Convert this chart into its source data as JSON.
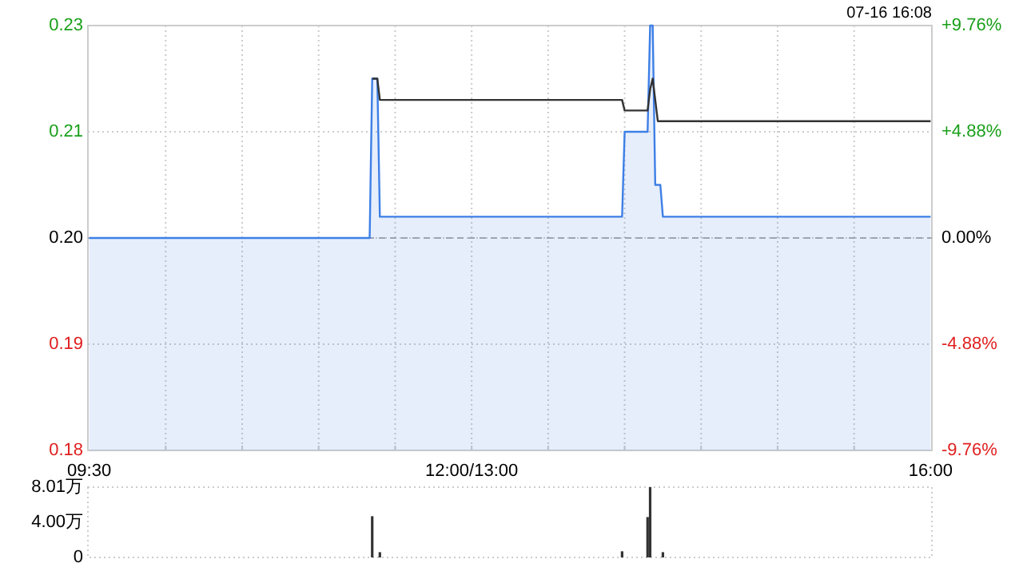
{
  "chart_data": [
    {
      "type": "area",
      "annotations": [
        "07-16 16:08"
      ],
      "categories": [
        "09:30",
        null,
        null,
        null,
        null,
        null,
        null,
        null,
        null,
        null,
        null,
        null,
        null,
        null,
        null,
        null,
        null,
        null,
        null,
        null,
        null,
        null,
        null,
        null,
        null,
        null,
        null,
        null,
        null,
        null,
        null,
        null,
        null,
        null,
        null,
        null,
        null,
        null,
        null,
        null,
        null,
        null,
        null,
        null,
        null,
        null,
        null,
        null,
        null,
        null,
        null,
        null,
        null,
        null,
        null,
        null,
        null,
        null,
        null,
        null,
        null,
        null,
        null,
        null,
        null,
        null,
        null,
        null,
        null,
        null,
        null,
        null,
        null,
        null,
        null,
        null,
        null,
        null,
        null,
        null,
        null,
        null,
        null,
        null,
        null,
        null,
        null,
        null,
        null,
        null,
        null,
        null,
        null,
        null,
        null,
        null,
        null,
        null,
        null,
        null,
        null,
        null,
        null,
        null,
        null,
        null,
        null,
        null,
        null,
        null,
        null,
        null,
        null,
        null,
        null,
        null,
        null,
        null,
        null,
        null,
        null,
        null,
        null,
        null,
        null,
        null,
        null,
        null,
        null,
        null,
        null,
        null,
        null,
        null,
        null,
        null,
        null,
        null,
        null,
        null,
        null,
        null,
        null,
        null,
        null,
        null,
        null,
        null,
        null,
        null,
        "12:00/13:00",
        null,
        null,
        null,
        null,
        null,
        null,
        null,
        null,
        null,
        null,
        null,
        null,
        null,
        null,
        null,
        null,
        null,
        null,
        null,
        null,
        null,
        null,
        null,
        null,
        null,
        null,
        null,
        null,
        null,
        null,
        null,
        null,
        null,
        null,
        null,
        null,
        null,
        null,
        null,
        null,
        null,
        null,
        null,
        null,
        null,
        null,
        null,
        null,
        null,
        null,
        null,
        null,
        null,
        null,
        null,
        null,
        null,
        null,
        null,
        null,
        null,
        null,
        null,
        null,
        null,
        null,
        null,
        null,
        null,
        null,
        null,
        null,
        null,
        null,
        null,
        null,
        null,
        null,
        null,
        null,
        null,
        null,
        null,
        null,
        null,
        null,
        null,
        null,
        null,
        null,
        null,
        null,
        null,
        null,
        null,
        null,
        null,
        null,
        null,
        null,
        null,
        null,
        null,
        null,
        null,
        null,
        null,
        null,
        null,
        null,
        null,
        null,
        null,
        null,
        null,
        null,
        null,
        null,
        null,
        null,
        null,
        null,
        null,
        null,
        null,
        null,
        null,
        null,
        null,
        null,
        null,
        null,
        null,
        null,
        null,
        null,
        null,
        null,
        null,
        null,
        null,
        null,
        null,
        null,
        null,
        null,
        null,
        null,
        null,
        null,
        null,
        null,
        null,
        null,
        null,
        null,
        null,
        null,
        null,
        null,
        null,
        null,
        null,
        null,
        null,
        null,
        null,
        null,
        null,
        null,
        null,
        null,
        null,
        null,
        null,
        null,
        null,
        null,
        null,
        "16:00"
      ],
      "ylim": [
        0.185,
        0.225
      ],
      "yticks": [
        {
          "value": 0.185,
          "label": "0.18"
        },
        {
          "value": 0.195,
          "label": "0.19"
        },
        {
          "value": 0.205,
          "label": "0.20"
        },
        {
          "value": 0.215,
          "label": "0.21"
        },
        {
          "value": 0.225,
          "label": "0.23"
        }
      ],
      "y2lim": [
        -9.76,
        9.76
      ],
      "y2ticks": [
        {
          "value": -9.76,
          "label": "-9.76%"
        },
        {
          "value": -4.88,
          "label": "-4.88%"
        },
        {
          "value": 0,
          "label": "0.00%"
        },
        {
          "value": 4.88,
          "label": "+4.88%"
        },
        {
          "value": 9.76,
          "label": "+9.76%"
        }
      ],
      "grid": true,
      "ref_lines": [
        {
          "axis": "y",
          "value": 0.205,
          "line_style": "dashed",
          "color": "#aaaaaa"
        }
      ],
      "series": [
        {
          "color": "#3d7fe6",
          "values": [
            0.205,
            0.205,
            0.205,
            0.205,
            0.205,
            0.205,
            0.205,
            0.205,
            0.205,
            0.205,
            0.205,
            0.205,
            0.205,
            0.205,
            0.205,
            0.205,
            0.205,
            0.205,
            0.205,
            0.205,
            0.205,
            0.205,
            0.205,
            0.205,
            0.205,
            0.205,
            0.205,
            0.205,
            0.205,
            0.205,
            0.205,
            0.205,
            0.205,
            0.205,
            0.205,
            0.205,
            0.205,
            0.205,
            0.205,
            0.205,
            0.205,
            0.205,
            0.205,
            0.205,
            0.205,
            0.205,
            0.205,
            0.205,
            0.205,
            0.205,
            0.205,
            0.205,
            0.205,
            0.205,
            0.205,
            0.205,
            0.205,
            0.205,
            0.205,
            0.205,
            0.205,
            0.205,
            0.205,
            0.205,
            0.205,
            0.205,
            0.205,
            0.205,
            0.205,
            0.205,
            0.205,
            0.205,
            0.205,
            0.205,
            0.205,
            0.205,
            0.205,
            0.205,
            0.205,
            0.205,
            0.205,
            0.205,
            0.205,
            0.205,
            0.205,
            0.205,
            0.205,
            0.205,
            0.205,
            0.205,
            0.205,
            0.205,
            0.205,
            0.205,
            0.205,
            0.205,
            0.205,
            0.205,
            0.205,
            0.205,
            0.205,
            0.205,
            0.205,
            0.205,
            0.205,
            0.205,
            0.205,
            0.205,
            0.205,
            0.205,
            0.205,
            0.22,
            0.22,
            0.22,
            0.207,
            0.207,
            0.207,
            0.207,
            0.207,
            0.207,
            0.207,
            0.207,
            0.207,
            0.207,
            0.207,
            0.207,
            0.207,
            0.207,
            0.207,
            0.207,
            0.207,
            0.207,
            0.207,
            0.207,
            0.207,
            0.207,
            0.207,
            0.207,
            0.207,
            0.207,
            0.207,
            0.207,
            0.207,
            0.207,
            0.207,
            0.207,
            0.207,
            0.207,
            0.207,
            0.207,
            0.207,
            0.207,
            0.207,
            0.207,
            0.207,
            0.207,
            0.207,
            0.207,
            0.207,
            0.207,
            0.207,
            0.207,
            0.207,
            0.207,
            0.207,
            0.207,
            0.207,
            0.207,
            0.207,
            0.207,
            0.207,
            0.207,
            0.207,
            0.207,
            0.207,
            0.207,
            0.207,
            0.207,
            0.207,
            0.207,
            0.207,
            0.207,
            0.207,
            0.207,
            0.207,
            0.207,
            0.207,
            0.207,
            0.207,
            0.207,
            0.207,
            0.207,
            0.207,
            0.207,
            0.207,
            0.207,
            0.207,
            0.207,
            0.207,
            0.207,
            0.207,
            0.207,
            0.207,
            0.207,
            0.207,
            0.207,
            0.207,
            0.207,
            0.207,
            0.207,
            0.215,
            0.215,
            0.215,
            0.215,
            0.215,
            0.215,
            0.215,
            0.215,
            0.215,
            0.215,
            0.225,
            0.225,
            0.21,
            0.21,
            0.21,
            0.207,
            0.207,
            0.207,
            0.207,
            0.207,
            0.207,
            0.207,
            0.207,
            0.207,
            0.207,
            0.207,
            0.207,
            0.207,
            0.207,
            0.207,
            0.207,
            0.207,
            0.207,
            0.207,
            0.207,
            0.207,
            0.207,
            0.207,
            0.207,
            0.207,
            0.207,
            0.207,
            0.207,
            0.207,
            0.207,
            0.207,
            0.207,
            0.207,
            0.207,
            0.207,
            0.207,
            0.207,
            0.207,
            0.207,
            0.207,
            0.207,
            0.207,
            0.207,
            0.207,
            0.207,
            0.207,
            0.207,
            0.207,
            0.207,
            0.207,
            0.207,
            0.207,
            0.207,
            0.207,
            0.207,
            0.207,
            0.207,
            0.207,
            0.207,
            0.207,
            0.207,
            0.207,
            0.207,
            0.207,
            0.207,
            0.207,
            0.207,
            0.207,
            0.207,
            0.207,
            0.207,
            0.207,
            0.207,
            0.207,
            0.207,
            0.207,
            0.207,
            0.207,
            0.207,
            0.207,
            0.207,
            0.207,
            0.207,
            0.207,
            0.207,
            0.207,
            0.207,
            0.207,
            0.207,
            0.207,
            0.207,
            0.207,
            0.207,
            0.207,
            0.207,
            0.207,
            0.207,
            0.207,
            0.207,
            0.207,
            0.207,
            0.207,
            0.207,
            0.207,
            0.207,
            0.207
          ]
        },
        {
          "type": "line",
          "color": "#333333",
          "values": [
            null,
            null,
            null,
            null,
            null,
            null,
            null,
            null,
            null,
            null,
            null,
            null,
            null,
            null,
            null,
            null,
            null,
            null,
            null,
            null,
            null,
            null,
            null,
            null,
            null,
            null,
            null,
            null,
            null,
            null,
            null,
            null,
            null,
            null,
            null,
            null,
            null,
            null,
            null,
            null,
            null,
            null,
            null,
            null,
            null,
            null,
            null,
            null,
            null,
            null,
            null,
            null,
            null,
            null,
            null,
            null,
            null,
            null,
            null,
            null,
            null,
            null,
            null,
            null,
            null,
            null,
            null,
            null,
            null,
            null,
            null,
            null,
            null,
            null,
            null,
            null,
            null,
            null,
            null,
            null,
            null,
            null,
            null,
            null,
            null,
            null,
            null,
            null,
            null,
            null,
            null,
            null,
            null,
            null,
            null,
            null,
            null,
            null,
            null,
            null,
            null,
            null,
            null,
            null,
            null,
            null,
            null,
            null,
            null,
            null,
            null,
            0.22,
            0.22,
            0.22,
            0.218,
            0.218,
            0.218,
            0.218,
            0.218,
            0.218,
            0.218,
            0.218,
            0.218,
            0.218,
            0.218,
            0.218,
            0.218,
            0.218,
            0.218,
            0.218,
            0.218,
            0.218,
            0.218,
            0.218,
            0.218,
            0.218,
            0.218,
            0.218,
            0.218,
            0.218,
            0.218,
            0.218,
            0.218,
            0.218,
            0.218,
            0.218,
            0.218,
            0.218,
            0.218,
            0.218,
            0.218,
            0.218,
            0.218,
            0.218,
            0.218,
            0.218,
            0.218,
            0.218,
            0.218,
            0.218,
            0.218,
            0.218,
            0.218,
            0.218,
            0.218,
            0.218,
            0.218,
            0.218,
            0.218,
            0.218,
            0.218,
            0.218,
            0.218,
            0.218,
            0.218,
            0.218,
            0.218,
            0.218,
            0.218,
            0.218,
            0.218,
            0.218,
            0.218,
            0.218,
            0.218,
            0.218,
            0.218,
            0.218,
            0.218,
            0.218,
            0.218,
            0.218,
            0.218,
            0.218,
            0.218,
            0.218,
            0.218,
            0.218,
            0.218,
            0.218,
            0.218,
            0.218,
            0.218,
            0.218,
            0.218,
            0.218,
            0.218,
            0.218,
            0.218,
            0.218,
            0.217,
            0.217,
            0.217,
            0.217,
            0.217,
            0.217,
            0.217,
            0.217,
            0.217,
            0.217,
            0.219,
            0.22,
            0.218,
            0.216,
            0.216,
            0.216,
            0.216,
            0.216,
            0.216,
            0.216,
            0.216,
            0.216,
            0.216,
            0.216,
            0.216,
            0.216,
            0.216,
            0.216,
            0.216,
            0.216,
            0.216,
            0.216,
            0.216,
            0.216,
            0.216,
            0.216,
            0.216,
            0.216,
            0.216,
            0.216,
            0.216,
            0.216,
            0.216,
            0.216,
            0.216,
            0.216,
            0.216,
            0.216,
            0.216,
            0.216,
            0.216,
            0.216,
            0.216,
            0.216,
            0.216,
            0.216,
            0.216,
            0.216,
            0.216,
            0.216,
            0.216,
            0.216,
            0.216,
            0.216,
            0.216,
            0.216,
            0.216,
            0.216,
            0.216,
            0.216,
            0.216,
            0.216,
            0.216,
            0.216,
            0.216,
            0.216,
            0.216,
            0.216,
            0.216,
            0.216,
            0.216,
            0.216,
            0.216,
            0.216,
            0.216,
            0.216,
            0.216,
            0.216,
            0.216,
            0.216,
            0.216,
            0.216,
            0.216,
            0.216,
            0.216,
            0.216,
            0.216,
            0.216,
            0.216,
            0.216,
            0.216,
            0.216,
            0.216,
            0.216,
            0.216,
            0.216,
            0.216,
            0.216,
            0.216,
            0.216,
            0.216,
            0.216,
            0.216,
            0.216,
            0.216,
            0.216,
            0.216,
            0.216,
            0.216,
            0.216,
            0.216
          ]
        }
      ]
    },
    {
      "type": "bar",
      "categories": [
        null,
        null,
        null,
        null,
        null,
        null,
        null,
        null,
        null,
        null,
        null,
        null,
        null,
        null,
        null,
        null,
        null,
        null,
        null,
        null,
        null,
        null,
        null,
        null,
        null,
        null,
        null,
        null,
        null,
        null,
        null,
        null,
        null,
        null,
        null,
        null,
        null,
        null,
        null,
        null,
        null,
        null,
        null,
        null,
        null,
        null,
        null,
        null,
        null,
        null,
        null,
        null,
        null,
        null,
        null,
        null,
        null,
        null,
        null,
        null,
        null,
        null,
        null,
        null,
        null,
        null,
        null,
        null,
        null,
        null,
        null,
        null,
        null,
        null,
        null,
        null,
        null,
        null,
        null,
        null,
        null,
        null,
        null,
        null,
        null,
        null,
        null,
        null,
        null,
        null,
        null,
        null,
        null,
        null,
        null,
        null,
        null,
        null,
        null,
        null,
        null,
        null,
        null,
        null,
        null,
        null,
        null,
        null,
        null,
        null,
        null,
        null,
        null,
        null,
        null,
        null,
        null,
        null,
        null,
        null,
        null,
        null,
        null,
        null,
        null,
        null,
        null,
        null,
        null,
        null,
        null,
        null,
        null,
        null,
        null,
        null,
        null,
        null,
        null,
        null,
        null,
        null,
        null,
        null,
        null,
        null,
        null,
        null,
        null,
        null,
        null,
        null,
        null,
        null,
        null,
        null,
        null,
        null,
        null,
        null,
        null,
        null,
        null,
        null,
        null,
        null,
        null,
        null,
        null,
        null,
        null,
        null,
        null,
        null,
        null,
        null,
        null,
        null,
        null,
        null,
        null,
        null,
        null,
        null,
        null,
        null,
        null,
        null,
        null,
        null,
        null,
        null,
        null,
        null,
        null,
        null,
        null,
        null,
        null,
        null,
        null,
        null,
        null,
        null,
        null,
        null,
        null,
        null,
        null,
        null,
        null,
        null,
        null,
        null,
        null,
        null,
        null,
        null,
        null,
        null,
        null,
        null,
        null,
        null,
        null,
        null,
        null,
        null,
        null,
        null,
        null,
        null,
        null,
        null,
        null,
        null,
        null,
        null,
        null,
        null,
        null,
        null,
        null,
        null,
        null,
        null,
        null,
        null,
        null,
        null,
        null,
        null,
        null,
        null,
        null,
        null,
        null,
        null,
        null,
        null,
        null,
        null,
        null,
        null,
        null,
        null,
        null,
        null,
        null,
        null,
        null,
        null,
        null,
        null,
        null,
        null,
        null,
        null,
        null,
        null,
        null,
        null,
        null,
        null,
        null,
        null,
        null,
        null,
        null,
        null,
        null,
        null,
        null,
        null,
        null,
        null,
        null,
        null,
        null,
        null,
        null,
        null,
        null,
        null,
        null,
        null,
        null,
        null,
        null,
        null,
        null,
        null,
        null,
        null,
        null,
        null,
        null,
        null,
        null,
        null,
        null,
        null,
        null,
        null,
        null,
        null,
        null,
        null,
        null,
        null,
        null
      ],
      "ylim": [
        0,
        8.01
      ],
      "yticks": [
        0,
        {
          "value": 4.0,
          "label": "4.00万"
        },
        {
          "value": 8.01,
          "label": "8.01万"
        }
      ],
      "series": [
        {
          "color": "#333333",
          "values": [
            0,
            0,
            0,
            0,
            0,
            0,
            0,
            0,
            0,
            0,
            0,
            0,
            0,
            0,
            0,
            0,
            0,
            0,
            0,
            0,
            0,
            0,
            0,
            0,
            0,
            0,
            0,
            0,
            0,
            0,
            0,
            0,
            0,
            0,
            0,
            0,
            0,
            0,
            0,
            0,
            0,
            0,
            0,
            0,
            0,
            0,
            0,
            0,
            0,
            0,
            0,
            0,
            0,
            0,
            0,
            0,
            0,
            0,
            0,
            0,
            0,
            0,
            0,
            0,
            0,
            0,
            0,
            0,
            0,
            0,
            0,
            0,
            0,
            0,
            0,
            0,
            0,
            0,
            0,
            0,
            0,
            0,
            0,
            0,
            0,
            0,
            0,
            0,
            0,
            0,
            0,
            0,
            0,
            0,
            0,
            0,
            0,
            0,
            0,
            0,
            0,
            0,
            0,
            0,
            0,
            0,
            0,
            0,
            0,
            0,
            0,
            4.7,
            0,
            0,
            0.6,
            0,
            0,
            0,
            0,
            0,
            0,
            0,
            0,
            0,
            0,
            0,
            0,
            0,
            0,
            0,
            0,
            0,
            0,
            0,
            0,
            0,
            0,
            0,
            0,
            0,
            0,
            0,
            0,
            0,
            0,
            0,
            0,
            0,
            0,
            0,
            0,
            0,
            0,
            0,
            0,
            0,
            0,
            0,
            0,
            0,
            0,
            0,
            0,
            0,
            0,
            0,
            0,
            0,
            0,
            0,
            0,
            0,
            0,
            0,
            0,
            0,
            0,
            0,
            0,
            0,
            0,
            0,
            0,
            0,
            0,
            0,
            0,
            0,
            0,
            0,
            0,
            0,
            0,
            0,
            0,
            0,
            0,
            0,
            0,
            0,
            0,
            0,
            0,
            0,
            0,
            0,
            0,
            0,
            0,
            0.7,
            0,
            0,
            0,
            0,
            0,
            0,
            0,
            0,
            0,
            4.6,
            8.01,
            0,
            0,
            0,
            0,
            0.6,
            0,
            0,
            0,
            0,
            0,
            0,
            0,
            0,
            0,
            0,
            0,
            0,
            0,
            0,
            0,
            0,
            0,
            0,
            0,
            0,
            0,
            0,
            0,
            0,
            0,
            0,
            0,
            0,
            0,
            0,
            0,
            0,
            0,
            0,
            0,
            0,
            0,
            0,
            0,
            0,
            0,
            0,
            0,
            0,
            0,
            0,
            0,
            0,
            0,
            0,
            0,
            0,
            0,
            0,
            0,
            0,
            0,
            0,
            0,
            0,
            0,
            0,
            0,
            0,
            0,
            0,
            0,
            0,
            0,
            0,
            0,
            0,
            0,
            0,
            0,
            0,
            0,
            0,
            0,
            0,
            0,
            0,
            0,
            0,
            0,
            0,
            0,
            0,
            0,
            0,
            0,
            0,
            0,
            0,
            0,
            0,
            0,
            0,
            0,
            0,
            0,
            0,
            0,
            0,
            0
          ]
        }
      ]
    }
  ]
}
